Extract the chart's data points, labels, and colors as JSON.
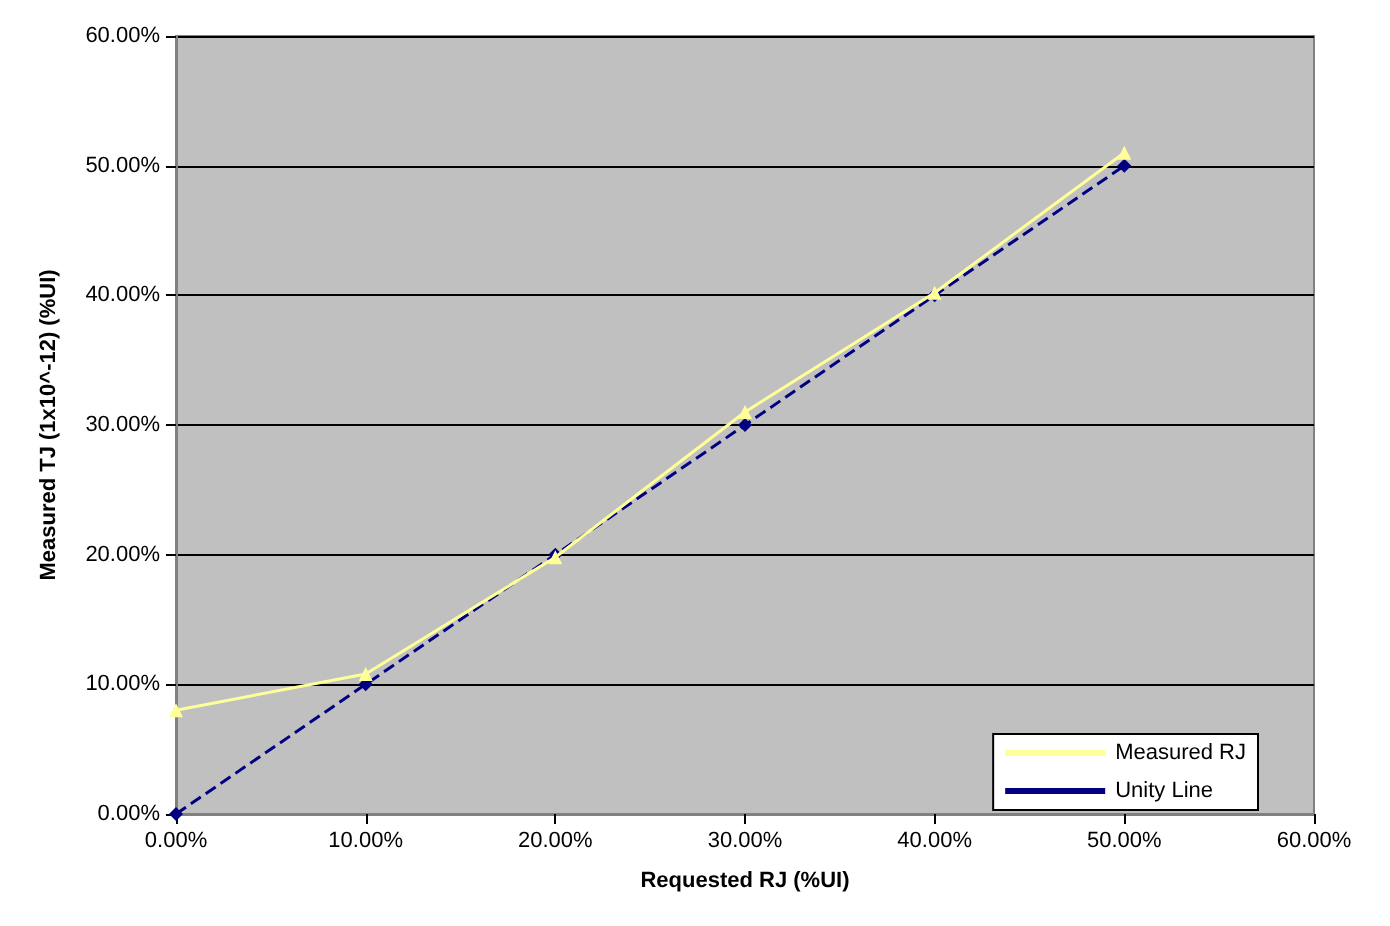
{
  "chart_data": {
    "type": "line",
    "xlabel": "Requested RJ (%UI)",
    "ylabel": "Measured TJ (1x10^-12) (%UI)",
    "x": [
      0,
      10,
      20,
      30,
      40,
      50
    ],
    "series": [
      {
        "name": "Measured RJ",
        "color": "#ffff99",
        "values": [
          8.0,
          10.8,
          19.8,
          31.0,
          40.2,
          51.0
        ],
        "marker": "triangle",
        "line_style": "solid"
      },
      {
        "name": "Unity Line",
        "color": "#000080",
        "values": [
          0,
          10,
          20,
          30,
          40,
          50
        ],
        "marker": "diamond",
        "line_style": "dashed"
      }
    ],
    "xlim": [
      0,
      60
    ],
    "ylim": [
      0,
      60
    ],
    "xticks": [
      {
        "value": 0,
        "label": "0.00%"
      },
      {
        "value": 10,
        "label": "10.00%"
      },
      {
        "value": 20,
        "label": "20.00%"
      },
      {
        "value": 30,
        "label": "30.00%"
      },
      {
        "value": 40,
        "label": "40.00%"
      },
      {
        "value": 50,
        "label": "50.00%"
      },
      {
        "value": 60,
        "label": "60.00%"
      }
    ],
    "yticks": [
      {
        "value": 0,
        "label": "0.00%"
      },
      {
        "value": 10,
        "label": "10.00%"
      },
      {
        "value": 20,
        "label": "20.00%"
      },
      {
        "value": 30,
        "label": "30.00%"
      },
      {
        "value": 40,
        "label": "40.00%"
      },
      {
        "value": 50,
        "label": "50.00%"
      },
      {
        "value": 60,
        "label": "60.00%"
      }
    ],
    "grid": "y",
    "legend": "bottom right"
  }
}
